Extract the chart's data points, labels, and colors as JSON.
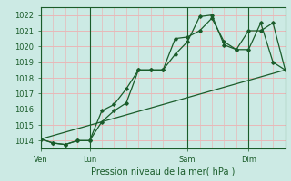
{
  "background_color": "#cceae4",
  "grid_color_h": "#e8b8b8",
  "grid_color_v": "#e8b8b8",
  "line_color": "#1a5c2a",
  "title": "Pression niveau de la mer( hPa )",
  "ylim": [
    1013.5,
    1022.5
  ],
  "yticks": [
    1014,
    1015,
    1016,
    1017,
    1018,
    1019,
    1020,
    1021,
    1022
  ],
  "xlim": [
    0,
    20
  ],
  "day_labels": [
    "Ven",
    "Lun",
    "Sam",
    "Dim"
  ],
  "day_positions": [
    0,
    4,
    12,
    17
  ],
  "line1_x": [
    0,
    1,
    2,
    3,
    4,
    5,
    6,
    7,
    8,
    9,
    10,
    11,
    12,
    13,
    14,
    15,
    16,
    17,
    18,
    19,
    20
  ],
  "line1_y": [
    1014.1,
    1013.85,
    1013.75,
    1014.0,
    1014.0,
    1015.9,
    1016.3,
    1017.3,
    1018.5,
    1018.5,
    1018.5,
    1020.5,
    1020.6,
    1021.0,
    1021.8,
    1020.3,
    1019.8,
    1021.0,
    1021.0,
    1021.5,
    1018.5
  ],
  "line2_x": [
    0,
    1,
    2,
    3,
    4,
    5,
    6,
    7,
    8,
    9,
    10,
    11,
    12,
    13,
    14,
    15,
    16,
    17,
    18,
    19,
    20
  ],
  "line2_y": [
    1014.1,
    1013.85,
    1013.75,
    1014.0,
    1014.0,
    1015.2,
    1015.9,
    1016.4,
    1018.5,
    1018.5,
    1018.5,
    1019.5,
    1020.3,
    1021.9,
    1022.0,
    1020.1,
    1019.8,
    1019.8,
    1021.5,
    1019.0,
    1018.5
  ],
  "line3_x": [
    0,
    20
  ],
  "line3_y": [
    1014.1,
    1018.5
  ],
  "title_fontsize": 7,
  "tick_fontsize": 6,
  "xlabel_fontsize": 7
}
